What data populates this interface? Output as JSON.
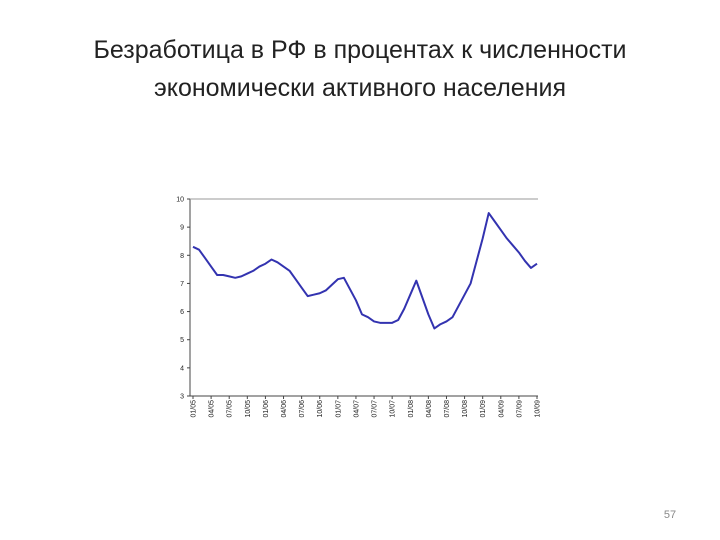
{
  "slide": {
    "title_lines": [
      "Безработица в РФ в процентах к численности",
      "экономически активного населения"
    ],
    "page_number": 57
  },
  "chart_data": {
    "type": "line",
    "categories": [
      "01/05",
      null,
      null,
      "04/05",
      null,
      null,
      "07/05",
      null,
      null,
      "10/05",
      null,
      null,
      "01/06",
      null,
      null,
      "04/06",
      null,
      null,
      "07/06",
      null,
      null,
      "10/06",
      null,
      null,
      "01/07",
      null,
      null,
      "04/07",
      null,
      null,
      "07/07",
      null,
      null,
      "10/07",
      null,
      null,
      "01/08",
      null,
      null,
      "04/08",
      null,
      null,
      "07/08",
      null,
      null,
      "10/08",
      null,
      null,
      "01/09",
      null,
      null,
      "04/09",
      null,
      null,
      "07/09",
      null,
      null,
      "10/09"
    ],
    "series": [
      {
        "name": "Безработица",
        "color": "#3333b0",
        "values": [
          8.3,
          8.2,
          7.9,
          7.6,
          7.3,
          7.3,
          7.25,
          7.2,
          7.25,
          7.35,
          7.45,
          7.6,
          7.7,
          7.85,
          7.75,
          7.6,
          7.45,
          7.15,
          6.85,
          6.55,
          6.6,
          6.65,
          6.75,
          6.95,
          7.15,
          7.2,
          6.8,
          6.4,
          5.9,
          5.8,
          5.65,
          5.6,
          5.6,
          5.6,
          5.7,
          6.1,
          6.6,
          7.1,
          6.5,
          5.9,
          5.4,
          5.55,
          5.65,
          5.8,
          6.2,
          6.6,
          7.0,
          7.8,
          8.6,
          9.5,
          9.2,
          8.9,
          8.6,
          8.35,
          8.1,
          7.8,
          7.55,
          7.7
        ]
      }
    ],
    "ylim": [
      3,
      10
    ],
    "yticks": [
      3,
      4,
      5,
      6,
      7,
      8,
      9,
      10
    ]
  }
}
